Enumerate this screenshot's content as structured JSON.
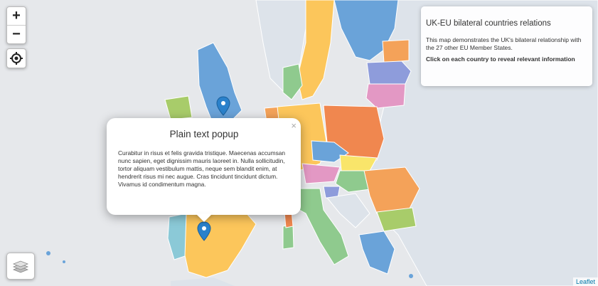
{
  "controls": {
    "zoom_in": "+",
    "zoom_out": "−"
  },
  "info": {
    "title": "UK-EU bilateral countries relations",
    "description": "This map demonstrates the UK's bilateral relationship with the 27 other EU Member States.",
    "cta": "Click on each country to reveal relevant information"
  },
  "popup": {
    "title": "Plain text popup",
    "body": "Curabitur in risus et felis gravida tristique. Maecenas accumsan nunc sapien, eget dignissim mauris laoreet in. Nulla sollicitudin, tortor aliquam vestibulum mattis, neque sem blandit enim, at hendrerit risus mi nec augue. Cras tincidunt tincidunt dictum. Vivamus id condimentum magna.",
    "close": "×"
  },
  "attribution": "Leaflet",
  "colors": {
    "sea": "#e6e8eb",
    "land": "#dde3ea",
    "border": "#ffffff",
    "uk": "#6aa3d9",
    "marker": "#2a81cb"
  },
  "icons": {
    "locate": "crosshair-icon",
    "layers": "layers-icon",
    "marker": "map-marker-icon"
  }
}
